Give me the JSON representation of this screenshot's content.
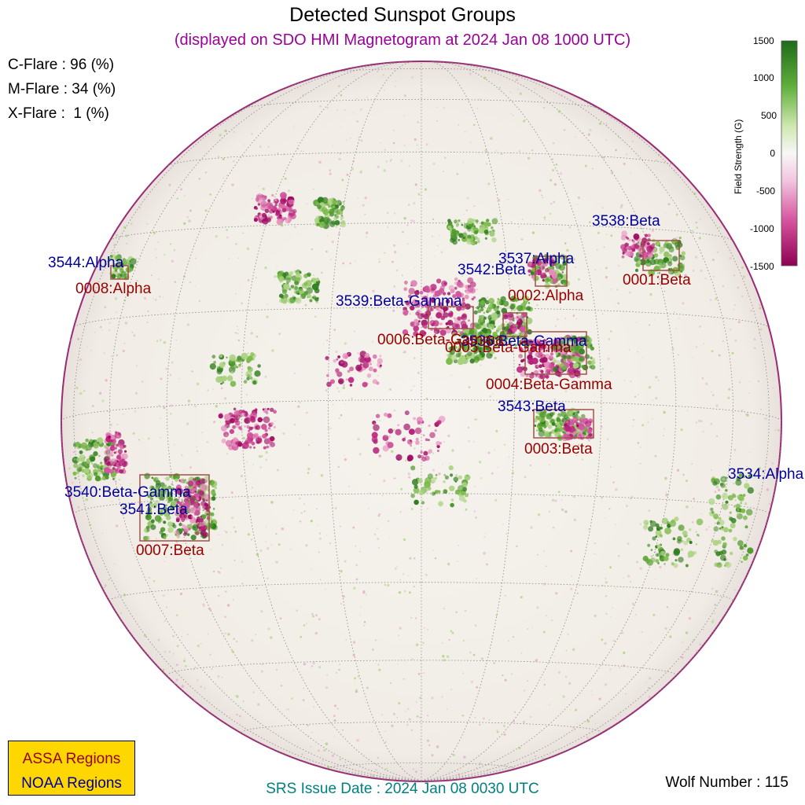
{
  "header": {
    "title": "Detected Sunspot Groups",
    "subtitle": "(displayed on SDO HMI Magnetogram at 2024 Jan 08 1000 UTC)"
  },
  "flare_probabilities": [
    {
      "label": "C-Flare : 96 (%)",
      "value": 96
    },
    {
      "label": "M-Flare : 34 (%)",
      "value": 34
    },
    {
      "label": "X-Flare :  1 (%)",
      "value": 1
    }
  ],
  "colorbar": {
    "title": "Field Strength (G)",
    "ticks": [
      "1500",
      "1000",
      "500",
      "0",
      "-500",
      "-1000",
      "-1500"
    ],
    "range": [
      -1500,
      1500
    ],
    "positive_color": "#1f7a1f",
    "negative_color": "#a6006a"
  },
  "noaa_regions": [
    {
      "label": "3538:Beta"
    },
    {
      "label": "3537:Alpha"
    },
    {
      "label": "3542:Beta"
    },
    {
      "label": "3544:Alpha"
    },
    {
      "label": "3539:Beta-Gamma"
    },
    {
      "label": "3536:Beta-Gamma"
    },
    {
      "label": "3543:Beta"
    },
    {
      "label": "3534:Alpha"
    },
    {
      "label": "3540:Beta-Gamma"
    },
    {
      "label": "3541:Beta"
    }
  ],
  "assa_regions": [
    {
      "label": "0001:Beta"
    },
    {
      "label": "0002:Alpha"
    },
    {
      "label": "0008:Alpha"
    },
    {
      "label": "0006:Beta-Gamma"
    },
    {
      "label": "0005:Beta-Gamma"
    },
    {
      "label": "0004:Beta-Gamma"
    },
    {
      "label": "0003:Beta"
    },
    {
      "label": "0007:Beta"
    }
  ],
  "legend": {
    "assa": "ASSA Regions",
    "noaa": "NOAA Regions",
    "assa_color": "#990000",
    "noaa_color": "#00009c",
    "background": "#ffd700"
  },
  "footer": {
    "srs": "SRS Issue Date : 2024 Jan 08 0030 UTC",
    "wolf": "Wolf Number : 115"
  }
}
